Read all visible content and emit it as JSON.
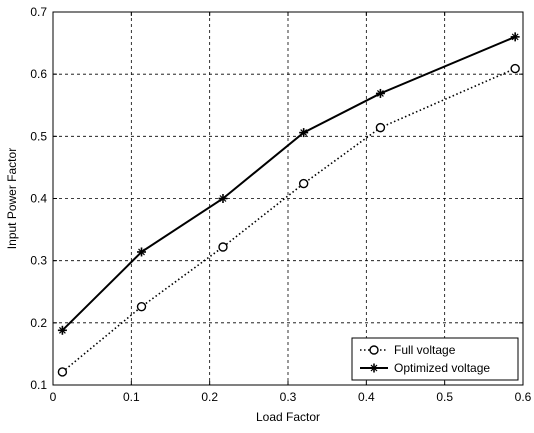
{
  "chart_data": {
    "type": "line",
    "title": "",
    "xlabel": "Load Factor",
    "ylabel": "Input Power Factor",
    "xlim": [
      0,
      0.6
    ],
    "ylim": [
      0.1,
      0.7
    ],
    "x_ticks": [
      0,
      0.1,
      0.2,
      0.3,
      0.4,
      0.5,
      0.6
    ],
    "x_tick_labels": [
      "0",
      "0.1",
      "0.2",
      "0.3",
      "0.4",
      "0.5",
      "0.6"
    ],
    "y_ticks": [
      0.1,
      0.2,
      0.3,
      0.4,
      0.5,
      0.6,
      0.7
    ],
    "y_tick_labels": [
      "0.1",
      "0.2",
      "0.3",
      "0.4",
      "0.5",
      "0.6",
      "0.7"
    ],
    "grid": true,
    "legend_position": "bottom-right",
    "series": [
      {
        "name": "Full voltage",
        "line_style": "dotted",
        "marker": "circle",
        "color": "#000000",
        "x": [
          0.012,
          0.113,
          0.217,
          0.32,
          0.418,
          0.59
        ],
        "y": [
          0.121,
          0.226,
          0.322,
          0.424,
          0.514,
          0.609
        ]
      },
      {
        "name": "Optimized voltage",
        "line_style": "solid",
        "marker": "star",
        "color": "#000000",
        "x": [
          0.012,
          0.113,
          0.217,
          0.32,
          0.418,
          0.59
        ],
        "y": [
          0.188,
          0.314,
          0.4,
          0.506,
          0.569,
          0.66
        ]
      }
    ]
  }
}
